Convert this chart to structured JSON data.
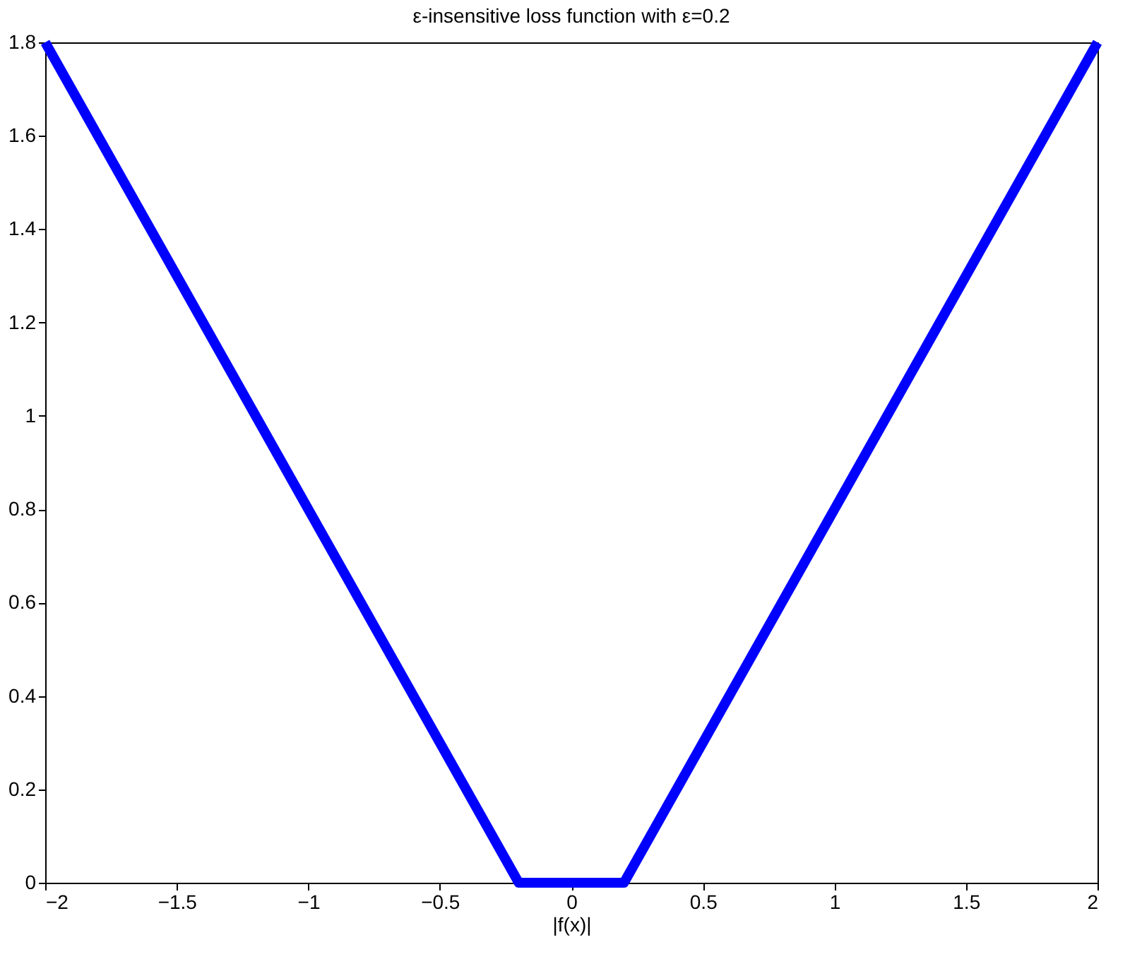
{
  "chart_data": {
    "type": "line",
    "title": "ε-insensitive loss function with ε=0.2",
    "xlabel": "|f(x)|",
    "x": [
      -2,
      -0.2,
      0.2,
      2
    ],
    "series": [
      {
        "color": "#0000ff",
        "values": [
          1.8,
          0,
          0,
          1.8
        ]
      }
    ],
    "xlim": [
      -2,
      2
    ],
    "xticks": [
      -2,
      -1.5,
      -1,
      -0.5,
      0,
      0.5,
      1,
      1.5,
      2
    ],
    "ylim": [
      0,
      1.8
    ],
    "yticks": [
      0,
      0.2,
      0.4,
      0.6,
      0.8,
      1,
      1.2,
      1.4,
      1.6,
      1.8
    ],
    "grid": false,
    "marker": "none",
    "line_style": "solid",
    "legend": false
  }
}
